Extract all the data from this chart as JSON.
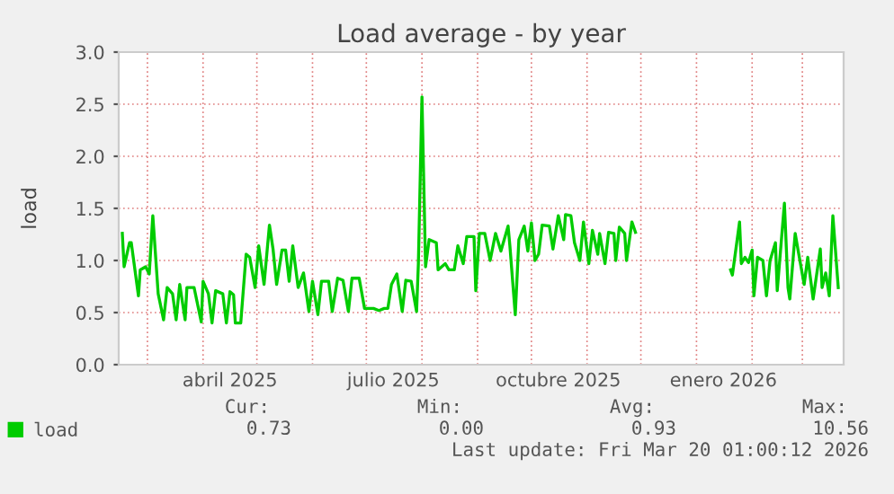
{
  "chart_data": {
    "type": "line",
    "title": "Load average - by year",
    "ylabel": "load",
    "x": [
      "2025-02-15",
      "2025-02-16",
      "2025-02-19",
      "2025-02-20",
      "2025-02-24",
      "2025-02-25",
      "2025-02-28",
      "2025-03-02",
      "2025-03-04",
      "2025-03-07",
      "2025-03-10",
      "2025-03-12",
      "2025-03-15",
      "2025-03-17",
      "2025-03-19",
      "2025-03-22",
      "2025-03-23",
      "2025-03-27",
      "2025-03-31",
      "2025-04-01",
      "2025-04-04",
      "2025-04-06",
      "2025-04-08",
      "2025-04-12",
      "2025-04-14",
      "2025-04-16",
      "2025-04-18",
      "2025-04-19",
      "2025-04-22",
      "2025-04-25",
      "2025-04-27",
      "2025-04-30",
      "2025-05-02",
      "2025-05-05",
      "2025-05-08",
      "2025-05-10",
      "2025-05-12",
      "2025-05-15",
      "2025-05-17",
      "2025-05-19",
      "2025-05-21",
      "2025-05-24",
      "2025-05-27",
      "2025-05-30",
      "2025-06-01",
      "2025-06-04",
      "2025-06-06",
      "2025-06-10",
      "2025-06-12",
      "2025-06-15",
      "2025-06-18",
      "2025-06-21",
      "2025-06-23",
      "2025-06-27",
      "2025-06-30",
      "2025-07-05",
      "2025-07-08",
      "2025-07-11",
      "2025-07-13",
      "2025-07-15",
      "2025-07-18",
      "2025-07-21",
      "2025-07-23",
      "2025-07-26",
      "2025-07-29",
      "2025-07-30",
      "2025-08-01",
      "2025-08-03",
      "2025-08-05",
      "2025-08-09",
      "2025-08-10",
      "2025-08-14",
      "2025-08-16",
      "2025-08-19",
      "2025-08-21",
      "2025-08-24",
      "2025-08-26",
      "2025-08-30",
      "2025-08-31",
      "2025-09-02",
      "2025-09-05",
      "2025-09-08",
      "2025-09-11",
      "2025-09-14",
      "2025-09-18",
      "2025-09-19",
      "2025-09-22",
      "2025-09-24",
      "2025-09-27",
      "2025-09-29",
      "2025-10-01",
      "2025-10-03",
      "2025-10-05",
      "2025-10-07",
      "2025-10-11",
      "2025-10-13",
      "2025-10-16",
      "2025-10-19",
      "2025-10-20",
      "2025-10-23",
      "2025-10-25",
      "2025-10-28",
      "2025-10-30",
      "2025-11-02",
      "2025-11-04",
      "2025-11-07",
      "2025-11-08",
      "2025-11-11",
      "2025-11-13",
      "2025-11-16",
      "2025-11-17",
      "2025-11-19",
      "2025-11-22",
      "2025-11-23",
      "2025-11-26",
      "2025-11-28",
      "2025-12-20",
      "2026-01-20",
      "2026-01-21",
      "2026-01-25",
      "2026-01-26",
      "2026-01-28",
      "2026-01-30",
      "2026-02-01",
      "2026-02-02",
      "2026-02-04",
      "2026-02-07",
      "2026-02-09",
      "2026-02-11",
      "2026-02-14",
      "2026-02-15",
      "2026-02-19",
      "2026-02-21",
      "2026-02-22",
      "2026-02-25",
      "2026-02-27",
      "2026-03-02",
      "2026-03-04",
      "2026-03-07",
      "2026-03-11",
      "2026-03-12",
      "2026-03-14",
      "2026-03-16",
      "2026-03-18",
      "2026-03-21"
    ],
    "series": [
      {
        "name": "load",
        "color": "#00cc00",
        "values": [
          1.26,
          0.94,
          1.17,
          1.17,
          0.66,
          0.91,
          0.94,
          0.87,
          1.43,
          0.68,
          0.43,
          0.74,
          0.68,
          0.43,
          0.77,
          0.43,
          0.74,
          0.74,
          0.41,
          0.8,
          0.68,
          0.4,
          0.71,
          0.68,
          0.4,
          0.7,
          0.67,
          0.4,
          0.4,
          1.06,
          1.03,
          0.74,
          1.14,
          0.77,
          1.34,
          1.11,
          0.77,
          1.1,
          1.1,
          0.8,
          1.14,
          0.74,
          0.88,
          0.51,
          0.8,
          0.48,
          0.8,
          0.8,
          0.51,
          0.83,
          0.81,
          0.51,
          0.83,
          0.83,
          0.54,
          0.54,
          0.52,
          0.54,
          0.54,
          0.77,
          0.87,
          0.51,
          0.81,
          0.8,
          0.51,
          0.97,
          2.57,
          0.94,
          1.2,
          1.17,
          0.91,
          0.97,
          0.91,
          0.91,
          1.14,
          0.97,
          1.23,
          1.23,
          0.71,
          1.26,
          1.26,
          1.0,
          1.26,
          1.09,
          1.33,
          1.14,
          0.48,
          1.2,
          1.33,
          1.09,
          1.36,
          1.0,
          1.06,
          1.34,
          1.33,
          1.11,
          1.43,
          1.2,
          1.44,
          1.43,
          1.17,
          1.0,
          1.37,
          0.97,
          1.29,
          1.06,
          1.26,
          0.97,
          1.27,
          1.26,
          1.0,
          1.32,
          1.26,
          1.0,
          1.37,
          1.27,
          null,
          0.91,
          0.86,
          1.37,
          0.97,
          1.03,
          0.98,
          1.1,
          0.66,
          1.03,
          1.0,
          0.66,
          1.0,
          1.17,
          0.71,
          1.55,
          0.74,
          0.63,
          1.26,
          1.06,
          0.77,
          1.03,
          0.63,
          1.11,
          0.74,
          0.88,
          0.66,
          1.43,
          0.74
        ]
      }
    ],
    "xlim": [
      "2025-02-13",
      "2026-03-24"
    ],
    "xticks": [
      {
        "value": "2025-03-01",
        "label": null
      },
      {
        "value": "2025-04-01",
        "label": null
      },
      {
        "value": "2025-04-16",
        "label": "abril 2025"
      },
      {
        "value": "2025-05-01",
        "label": null
      },
      {
        "value": "2025-06-01",
        "label": null
      },
      {
        "value": "2025-07-01",
        "label": null
      },
      {
        "value": "2025-07-16",
        "label": "julio 2025"
      },
      {
        "value": "2025-08-01",
        "label": null
      },
      {
        "value": "2025-09-01",
        "label": null
      },
      {
        "value": "2025-10-01",
        "label": null
      },
      {
        "value": "2025-10-16",
        "label": "octubre 2025"
      },
      {
        "value": "2025-11-01",
        "label": null
      },
      {
        "value": "2025-12-01",
        "label": null
      },
      {
        "value": "2026-01-01",
        "label": null
      },
      {
        "value": "2026-01-16",
        "label": "enero 2026"
      },
      {
        "value": "2026-02-01",
        "label": null
      },
      {
        "value": "2026-03-01",
        "label": null
      }
    ],
    "ylim": [
      0,
      3.0
    ],
    "yticks": [
      {
        "value": 0,
        "label": "0.0"
      },
      {
        "value": 0.5,
        "label": "0.5"
      },
      {
        "value": 1.0,
        "label": "1.0"
      },
      {
        "value": 1.5,
        "label": "1.5"
      },
      {
        "value": 2.0,
        "label": "2.0"
      },
      {
        "value": 2.5,
        "label": "2.5"
      },
      {
        "value": 3.0,
        "label": "3.0"
      }
    ],
    "grid": true,
    "legend": "bottom left",
    "annotations": [
      "Cur:",
      "Min:",
      "Avg:",
      "Max:",
      "0.73",
      "0.00",
      "0.93",
      "10.56",
      "Last update: Fri Mar 20 01:00:12 2026"
    ]
  }
}
